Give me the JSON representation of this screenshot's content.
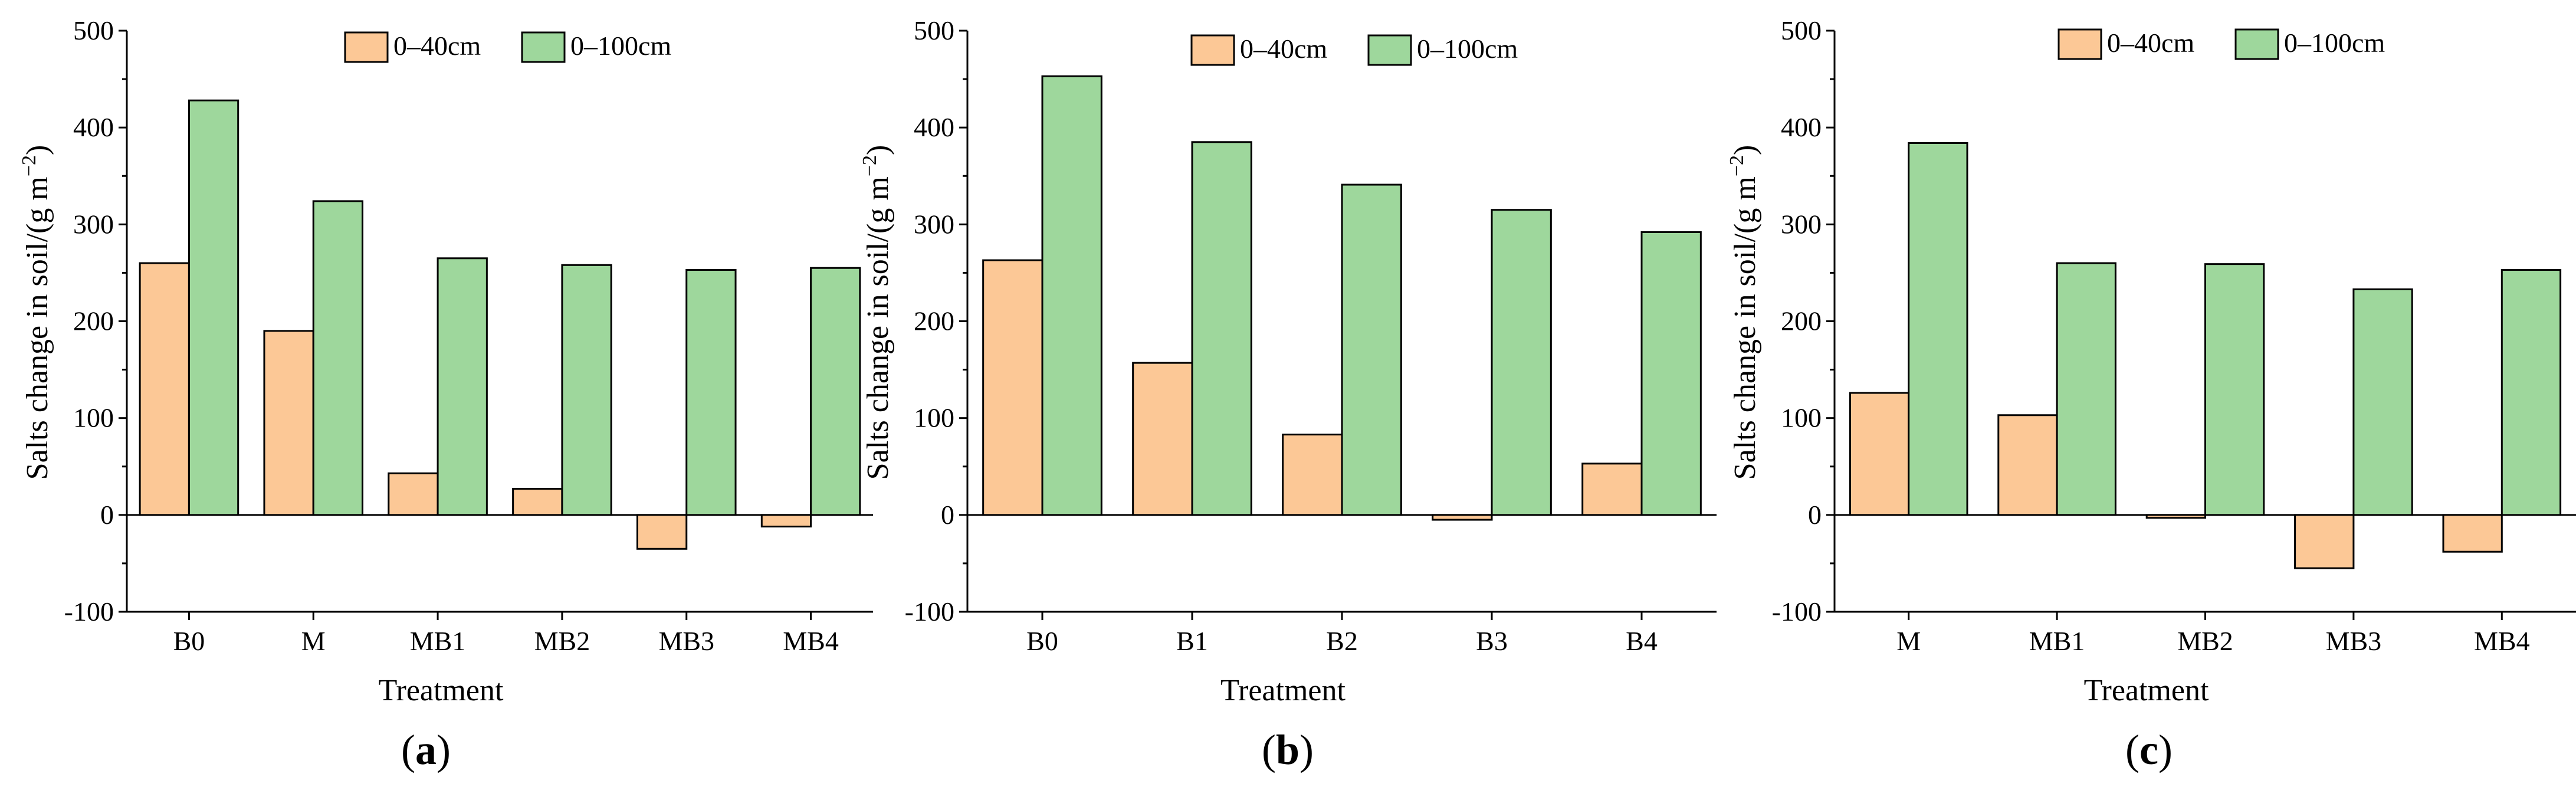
{
  "colors": {
    "s1": "#fcc896",
    "s2": "#9ed79c",
    "stroke": "#000000"
  },
  "chart_data": [
    {
      "type": "bar",
      "panel_label": "a",
      "categories": [
        "B0",
        "M",
        "MB1",
        "MB2",
        "MB3",
        "MB4"
      ],
      "series": [
        {
          "name": "0–40cm",
          "values": [
            260,
            190,
            43,
            27,
            -35,
            -12
          ]
        },
        {
          "name": "0–100cm",
          "values": [
            428,
            324,
            265,
            258,
            253,
            255
          ]
        }
      ],
      "xlabel": "Treatment",
      "ylabel": "Salts change in soil/(g m−2)",
      "ylabel_main": "Salts change in soil/(g m",
      "ylabel_sup": "−2",
      "ylabel_end": ")",
      "ylim": [
        -100,
        500
      ],
      "yticks": [
        -100,
        0,
        100,
        200,
        300,
        400,
        500
      ],
      "legend_position": "top-right"
    },
    {
      "type": "bar",
      "panel_label": "b",
      "categories": [
        "B0",
        "B1",
        "B2",
        "B3",
        "B4"
      ],
      "series": [
        {
          "name": "0–40cm",
          "values": [
            263,
            157,
            83,
            -5,
            53
          ]
        },
        {
          "name": "0–100cm",
          "values": [
            453,
            385,
            341,
            315,
            292
          ]
        }
      ],
      "xlabel": "Treatment",
      "ylabel": "Salts change in soil/(g m−2)",
      "ylabel_main": "Salts change in soil/(g m",
      "ylabel_sup": "−2",
      "ylabel_end": ")",
      "ylim": [
        -100,
        500
      ],
      "yticks": [
        -100,
        0,
        100,
        200,
        300,
        400,
        500
      ],
      "legend_position": "top-right"
    },
    {
      "type": "bar",
      "panel_label": "c",
      "categories": [
        "M",
        "MB1",
        "MB2",
        "MB3",
        "MB4"
      ],
      "series": [
        {
          "name": "0–40cm",
          "values": [
            126,
            103,
            -3,
            -55,
            -38
          ]
        },
        {
          "name": "0–100cm",
          "values": [
            384,
            260,
            259,
            233,
            253
          ]
        }
      ],
      "xlabel": "Treatment",
      "ylabel": "Salts change in soil/(g m−2)",
      "ylabel_main": "Salts change in soil/(g m",
      "ylabel_sup": "−2",
      "ylabel_end": ")",
      "ylim": [
        -100,
        500
      ],
      "yticks": [
        -100,
        0,
        100,
        200,
        300,
        400,
        500
      ],
      "legend_position": "top-right"
    }
  ]
}
